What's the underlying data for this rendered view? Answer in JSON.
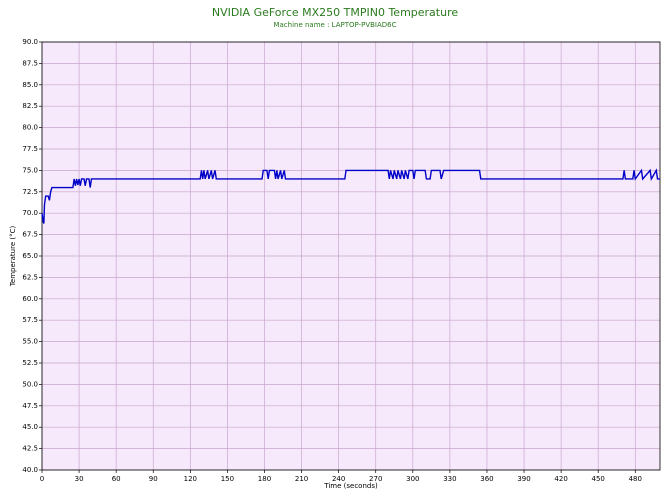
{
  "chart_data": {
    "type": "line",
    "title": "NVIDIA GeForce MX250 TMPIN0 Temperature",
    "subtitle": "Machine name : LAPTOP-PVBIAD6C",
    "x_label": "Time (seconds)",
    "y_label": "Temperature (°C)",
    "xlim": [
      0,
      500
    ],
    "ylim": [
      40,
      90
    ],
    "xticks": [
      0,
      30,
      60,
      90,
      120,
      150,
      180,
      210,
      240,
      270,
      300,
      330,
      360,
      390,
      420,
      450,
      480
    ],
    "yticks": [
      {
        "value": 40,
        "label": "40.0"
      },
      42.5,
      {
        "value": 45,
        "label": "45.0"
      },
      47.5,
      {
        "value": 50,
        "label": "50.0"
      },
      52.5,
      {
        "value": 55,
        "label": "55.0"
      },
      57.5,
      {
        "value": 60,
        "label": "60.0"
      },
      62.5,
      {
        "value": 65,
        "label": "65.0"
      },
      67.5,
      {
        "value": 70,
        "label": "70.0"
      },
      72.5,
      {
        "value": 75,
        "label": "75.0"
      },
      77.5,
      {
        "value": 80,
        "label": "80.0"
      },
      82.5,
      {
        "value": 85,
        "label": "85.0"
      },
      87.5,
      {
        "value": 90,
        "label": "90.0"
      }
    ],
    "grid": true,
    "background": "#f6e9fb",
    "grid_color": "#c9a6cf",
    "series": [
      {
        "name": "TMPIN0",
        "color": "#0000c8",
        "x": [
          0,
          1,
          1.5,
          2,
          3,
          5,
          6,
          7,
          8,
          25,
          26,
          27,
          28,
          29,
          30,
          31,
          32,
          34,
          35,
          36,
          38,
          39,
          40,
          128,
          129,
          130,
          131,
          132,
          134,
          135,
          137,
          138,
          140,
          141,
          178,
          179,
          182,
          183,
          184,
          188,
          189,
          190,
          191,
          193,
          194,
          196,
          197,
          245,
          246,
          280,
          281,
          282,
          284,
          285,
          287,
          288,
          290,
          291,
          293,
          294,
          296,
          297,
          300,
          301,
          302,
          310,
          311,
          314,
          315,
          322,
          323,
          325,
          354,
          355,
          470,
          471,
          472,
          478,
          479,
          480,
          485,
          486,
          492,
          493,
          497,
          498,
          500
        ],
        "values": [
          70,
          69,
          68.8,
          71,
          72,
          72,
          71.5,
          72.5,
          73,
          73,
          74,
          73.2,
          74,
          73.3,
          74,
          73.2,
          74,
          74,
          73.2,
          74,
          74,
          73,
          74,
          74,
          75,
          74,
          75,
          74,
          75,
          74,
          75,
          74,
          75,
          74,
          74,
          75,
          75,
          74,
          75,
          75,
          74,
          75,
          74,
          75,
          74,
          75,
          74,
          74,
          75,
          75,
          74,
          75,
          74,
          75,
          74,
          75,
          74,
          75,
          74,
          75,
          74,
          75,
          75,
          74,
          75,
          75,
          74,
          74,
          75,
          75,
          74,
          75,
          75,
          74,
          74,
          75,
          74,
          74,
          75,
          74,
          75,
          74,
          75,
          74,
          75,
          74,
          74
        ]
      }
    ]
  }
}
